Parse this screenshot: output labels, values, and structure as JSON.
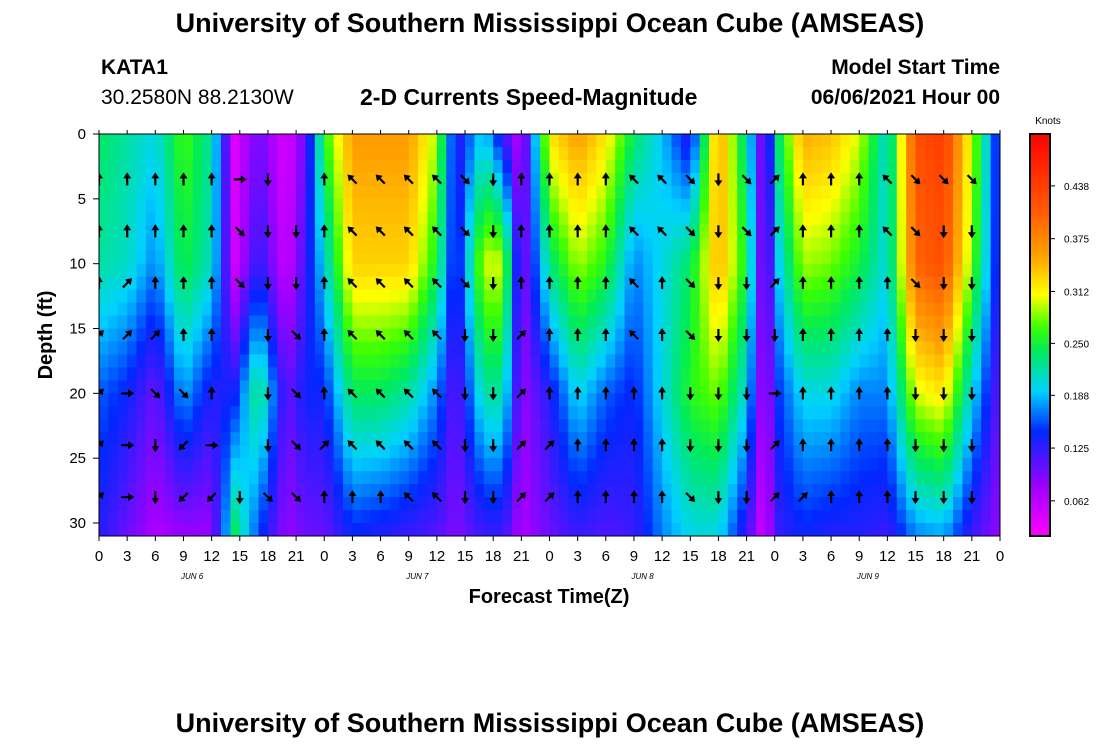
{
  "header": {
    "title": "University of Southern Mississippi Ocean Cube (AMSEAS)",
    "station": "KATA1",
    "latlon": "30.2580N  88.2130W",
    "subtitle": "2-D Currents Speed-Magnitude",
    "start_label": "Model Start Time",
    "start_date": "06/06/2021 Hour 00"
  },
  "footer": {
    "title": "University of Southern Mississippi Ocean Cube (AMSEAS)"
  },
  "chart_data": {
    "type": "heatmap",
    "title": "2-D Currents Speed-Magnitude",
    "xlabel": "Forecast Time(Z)",
    "ylabel": "Depth (ft)",
    "x_tick_labels": [
      "0",
      "3",
      "6",
      "9",
      "12",
      "15",
      "18",
      "21",
      "0",
      "3",
      "6",
      "9",
      "12",
      "15",
      "18",
      "21",
      "0",
      "3",
      "6",
      "9",
      "12",
      "15",
      "18",
      "21",
      "0",
      "3",
      "6",
      "9",
      "12",
      "15",
      "18",
      "21",
      "0"
    ],
    "xlim_hours": [
      0,
      96
    ],
    "day_labels": [
      {
        "label": "JUN 6",
        "hour": 9.5
      },
      {
        "label": "JUN 7",
        "hour": 33.5
      },
      {
        "label": "JUN 8",
        "hour": 57.5
      },
      {
        "label": "JUN 9",
        "hour": 81.5
      }
    ],
    "y_ticks": [
      0,
      5,
      10,
      15,
      20,
      25,
      30
    ],
    "ylim": [
      0,
      31
    ],
    "colorbar": {
      "label": "Knots",
      "ticks": [
        "0.062",
        "0.125",
        "0.188",
        "0.250",
        "0.312",
        "0.375",
        "0.438"
      ],
      "tick_values": [
        0.062,
        0.125,
        0.188,
        0.25,
        0.312,
        0.375,
        0.438
      ],
      "range": [
        0.02,
        0.5
      ]
    },
    "columns": [
      {
        "hour": 0,
        "profile": [
          0.24,
          0.22,
          0.16,
          0.13
        ]
      },
      {
        "hour": 3,
        "profile": [
          0.22,
          0.21,
          0.14,
          0.1
        ]
      },
      {
        "hour": 6,
        "profile": [
          0.2,
          0.17,
          0.1,
          0.07
        ]
      },
      {
        "hour": 9,
        "profile": [
          0.27,
          0.25,
          0.18,
          0.08
        ]
      },
      {
        "hour": 12,
        "profile": [
          0.22,
          0.21,
          0.13,
          0.08
        ]
      },
      {
        "hour": 14.5,
        "profile": [
          0.04,
          0.05,
          0.14,
          0.24
        ]
      },
      {
        "hour": 17,
        "profile": [
          0.1,
          0.13,
          0.24,
          0.15
        ]
      },
      {
        "hour": 20,
        "profile": [
          0.04,
          0.05,
          0.1,
          0.08
        ]
      },
      {
        "hour": 22,
        "profile": [
          0.1,
          0.12,
          0.14,
          0.1
        ]
      },
      {
        "hour": 24,
        "profile": [
          0.26,
          0.2,
          0.14,
          0.1
        ]
      },
      {
        "hour": 27,
        "profile": [
          0.36,
          0.33,
          0.24,
          0.14
        ]
      },
      {
        "hour": 30,
        "profile": [
          0.36,
          0.33,
          0.24,
          0.13
        ]
      },
      {
        "hour": 33,
        "profile": [
          0.36,
          0.33,
          0.22,
          0.12
        ]
      },
      {
        "hour": 36,
        "profile": [
          0.29,
          0.25,
          0.17,
          0.11
        ]
      },
      {
        "hour": 38,
        "profile": [
          0.12,
          0.12,
          0.1,
          0.09
        ]
      },
      {
        "hour": 41,
        "profile": [
          0.2,
          0.3,
          0.22,
          0.12
        ]
      },
      {
        "hour": 43,
        "profile": [
          0.12,
          0.3,
          0.22,
          0.12
        ]
      },
      {
        "hour": 45,
        "profile": [
          0.06,
          0.08,
          0.08,
          0.07
        ]
      },
      {
        "hour": 48,
        "profile": [
          0.32,
          0.23,
          0.13,
          0.1
        ]
      },
      {
        "hour": 51,
        "profile": [
          0.36,
          0.29,
          0.2,
          0.12
        ]
      },
      {
        "hour": 54,
        "profile": [
          0.32,
          0.26,
          0.16,
          0.11
        ]
      },
      {
        "hour": 57,
        "profile": [
          0.24,
          0.17,
          0.14,
          0.12
        ]
      },
      {
        "hour": 60,
        "profile": [
          0.19,
          0.2,
          0.2,
          0.17
        ]
      },
      {
        "hour": 63,
        "profile": [
          0.12,
          0.24,
          0.26,
          0.2
        ]
      },
      {
        "hour": 66,
        "profile": [
          0.36,
          0.35,
          0.28,
          0.2
        ]
      },
      {
        "hour": 69,
        "profile": [
          0.22,
          0.25,
          0.2,
          0.12
        ]
      },
      {
        "hour": 71,
        "profile": [
          0.06,
          0.05,
          0.05,
          0.04
        ]
      },
      {
        "hour": 72,
        "profile": [
          0.22,
          0.18,
          0.14,
          0.12
        ]
      },
      {
        "hour": 75,
        "profile": [
          0.35,
          0.29,
          0.2,
          0.14
        ]
      },
      {
        "hour": 78,
        "profile": [
          0.34,
          0.28,
          0.2,
          0.13
        ]
      },
      {
        "hour": 81,
        "profile": [
          0.3,
          0.25,
          0.17,
          0.13
        ]
      },
      {
        "hour": 84,
        "profile": [
          0.2,
          0.2,
          0.17,
          0.12
        ]
      },
      {
        "hour": 87,
        "profile": [
          0.42,
          0.4,
          0.3,
          0.17
        ]
      },
      {
        "hour": 90,
        "profile": [
          0.44,
          0.42,
          0.32,
          0.18
        ]
      },
      {
        "hour": 93,
        "profile": [
          0.3,
          0.28,
          0.2,
          0.12
        ]
      },
      {
        "hour": 96,
        "profile": [
          0.12,
          0.12,
          0.1,
          0.08
        ]
      }
    ],
    "profile_depths": [
      0,
      10,
      20,
      31
    ],
    "arrow_depths": [
      3.5,
      7.5,
      11.5,
      15.5,
      20,
      24,
      28
    ],
    "arrows": [
      {
        "hour": 0,
        "dirs": [
          "N",
          "N",
          "N",
          "NE",
          "NE",
          "NE",
          "NE"
        ]
      },
      {
        "hour": 3,
        "dirs": [
          "N",
          "N",
          "NE",
          "NE",
          "E",
          "E",
          "E"
        ]
      },
      {
        "hour": 6,
        "dirs": [
          "N",
          "N",
          "N",
          "NE",
          "SE",
          "S",
          "S"
        ]
      },
      {
        "hour": 9,
        "dirs": [
          "N",
          "N",
          "N",
          "N",
          "SE",
          "SW",
          "SW"
        ]
      },
      {
        "hour": 12,
        "dirs": [
          "N",
          "N",
          "N",
          "N",
          "N",
          "E",
          "SW"
        ]
      },
      {
        "hour": 15,
        "dirs": [
          "E",
          "SE",
          "SE",
          "",
          "",
          "",
          "S"
        ]
      },
      {
        "hour": 18,
        "dirs": [
          "S",
          "S",
          "S",
          "S",
          "S",
          "S",
          "SE"
        ]
      },
      {
        "hour": 21,
        "dirs": [
          "",
          "S",
          "S",
          "SE",
          "SE",
          "SE",
          "SE"
        ]
      },
      {
        "hour": 24,
        "dirs": [
          "N",
          "N",
          "N",
          "N",
          "N",
          "NE",
          "N"
        ]
      },
      {
        "hour": 27,
        "dirs": [
          "NW",
          "NW",
          "NW",
          "NW",
          "NW",
          "NW",
          "N"
        ]
      },
      {
        "hour": 30,
        "dirs": [
          "NW",
          "NW",
          "NW",
          "NW",
          "NW",
          "NW",
          "N"
        ]
      },
      {
        "hour": 33,
        "dirs": [
          "NW",
          "NW",
          "NW",
          "NW",
          "NW",
          "NW",
          "NW"
        ]
      },
      {
        "hour": 36,
        "dirs": [
          "NW",
          "NW",
          "NW",
          "NW",
          "NW",
          "NW",
          "NW"
        ]
      },
      {
        "hour": 39,
        "dirs": [
          "SE",
          "SE",
          "SE",
          "S",
          "S",
          "S",
          "S"
        ]
      },
      {
        "hour": 42,
        "dirs": [
          "S",
          "S",
          "S",
          "S",
          "S",
          "S",
          "S"
        ]
      },
      {
        "hour": 45,
        "dirs": [
          "N",
          "N",
          "N",
          "NE",
          "NE",
          "NE",
          "NE"
        ]
      },
      {
        "hour": 48,
        "dirs": [
          "N",
          "N",
          "N",
          "N",
          "N",
          "NE",
          "NE"
        ]
      },
      {
        "hour": 51,
        "dirs": [
          "N",
          "N",
          "N",
          "N",
          "N",
          "N",
          "N"
        ]
      },
      {
        "hour": 54,
        "dirs": [
          "N",
          "N",
          "N",
          "N",
          "N",
          "N",
          "N"
        ]
      },
      {
        "hour": 57,
        "dirs": [
          "NW",
          "NW",
          "NW",
          "NW",
          "N",
          "N",
          "N"
        ]
      },
      {
        "hour": 60,
        "dirs": [
          "NW",
          "NW",
          "N",
          "N",
          "N",
          "N",
          "N"
        ]
      },
      {
        "hour": 63,
        "dirs": [
          "SE",
          "SE",
          "SE",
          "SE",
          "S",
          "S",
          "SE"
        ]
      },
      {
        "hour": 66,
        "dirs": [
          "S",
          "S",
          "S",
          "S",
          "S",
          "S",
          "S"
        ]
      },
      {
        "hour": 69,
        "dirs": [
          "SE",
          "SE",
          "S",
          "S",
          "S",
          "S",
          "S"
        ]
      },
      {
        "hour": 72,
        "dirs": [
          "NE",
          "NE",
          "NE",
          "S",
          "E",
          "NE",
          "NE"
        ]
      },
      {
        "hour": 75,
        "dirs": [
          "N",
          "N",
          "N",
          "N",
          "N",
          "N",
          "NE"
        ]
      },
      {
        "hour": 78,
        "dirs": [
          "N",
          "N",
          "N",
          "N",
          "N",
          "N",
          "N"
        ]
      },
      {
        "hour": 81,
        "dirs": [
          "N",
          "N",
          "N",
          "N",
          "N",
          "N",
          "N"
        ]
      },
      {
        "hour": 84,
        "dirs": [
          "NW",
          "NW",
          "N",
          "N",
          "N",
          "N",
          "N"
        ]
      },
      {
        "hour": 87,
        "dirs": [
          "SE",
          "SE",
          "SE",
          "S",
          "S",
          "S",
          "S"
        ]
      },
      {
        "hour": 90,
        "dirs": [
          "SE",
          "S",
          "S",
          "S",
          "S",
          "S",
          "S"
        ]
      },
      {
        "hour": 93,
        "dirs": [
          "SE",
          "S",
          "S",
          "S",
          "S",
          "S",
          "S"
        ]
      }
    ]
  }
}
